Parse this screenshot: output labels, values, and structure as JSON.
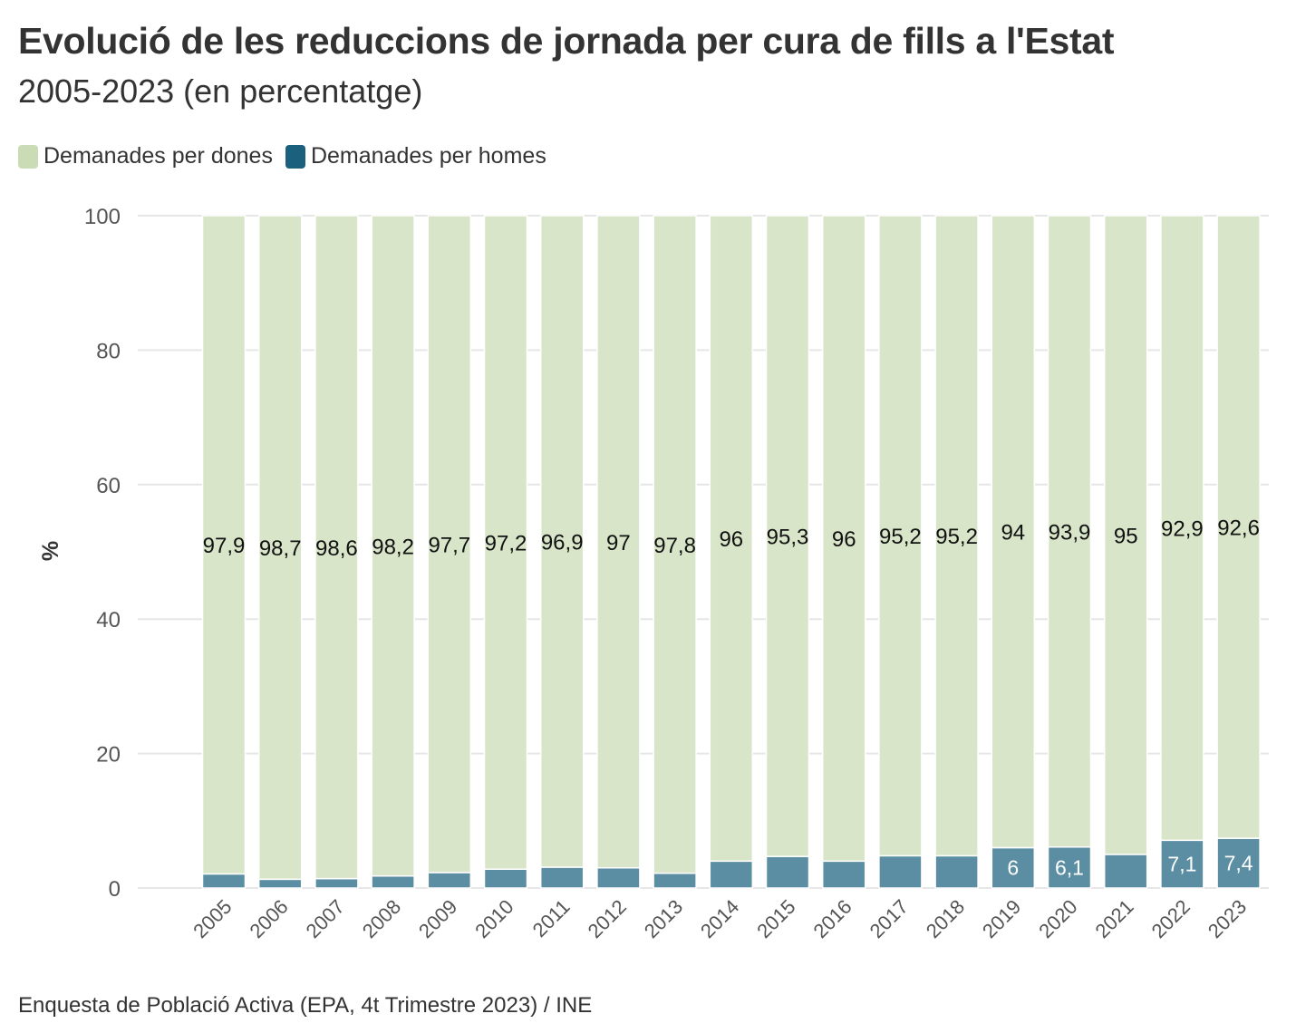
{
  "chart_data": {
    "type": "bar",
    "stacked": true,
    "title": "Evolució de les reduccions de jornada per cura de fills a l'Estat",
    "subtitle": "2005-2023 (en percentatge)",
    "ylabel": "%",
    "xlabel": "",
    "ylim": [
      0,
      100
    ],
    "yticks": [
      0,
      20,
      40,
      60,
      80,
      100
    ],
    "grid": true,
    "legend_position": "top-left",
    "categories": [
      "2005",
      "2006",
      "2007",
      "2008",
      "2009",
      "2010",
      "2011",
      "2012",
      "2013",
      "2014",
      "2015",
      "2016",
      "2017",
      "2018",
      "2019",
      "2020",
      "2021",
      "2022",
      "2023"
    ],
    "series": [
      {
        "name": "Demanades per homes",
        "color": "#5b8ea3",
        "values": [
          2.1,
          1.3,
          1.4,
          1.8,
          2.3,
          2.8,
          3.1,
          3.0,
          2.2,
          4.0,
          4.7,
          4.0,
          4.8,
          4.8,
          6.0,
          6.1,
          5.0,
          7.1,
          7.4
        ],
        "labels": [
          "",
          "",
          "",
          "",
          "",
          "",
          "",
          "",
          "",
          "",
          "",
          "",
          "",
          "",
          "6",
          "6,1",
          "",
          "7,1",
          "7,4"
        ]
      },
      {
        "name": "Demanades per dones",
        "color": "#d8e5c9",
        "values": [
          97.9,
          98.7,
          98.6,
          98.2,
          97.7,
          97.2,
          96.9,
          97.0,
          97.8,
          96.0,
          95.3,
          96.0,
          95.2,
          95.2,
          94.0,
          93.9,
          95.0,
          92.9,
          92.6
        ],
        "labels": [
          "97,9",
          "98,7",
          "98,6",
          "98,2",
          "97,7",
          "97,2",
          "96,9",
          "97",
          "97,8",
          "96",
          "95,3",
          "96",
          "95,2",
          "95,2",
          "94",
          "93,9",
          "95",
          "92,9",
          "92,6"
        ]
      }
    ],
    "legend_order": [
      "Demanades per dones",
      "Demanades per homes"
    ],
    "legend_colors": [
      "#c9dcb6",
      "#1b607d"
    ],
    "source": "Enquesta de Població Activa (EPA, 4t Trimestre 2023) / INE"
  }
}
